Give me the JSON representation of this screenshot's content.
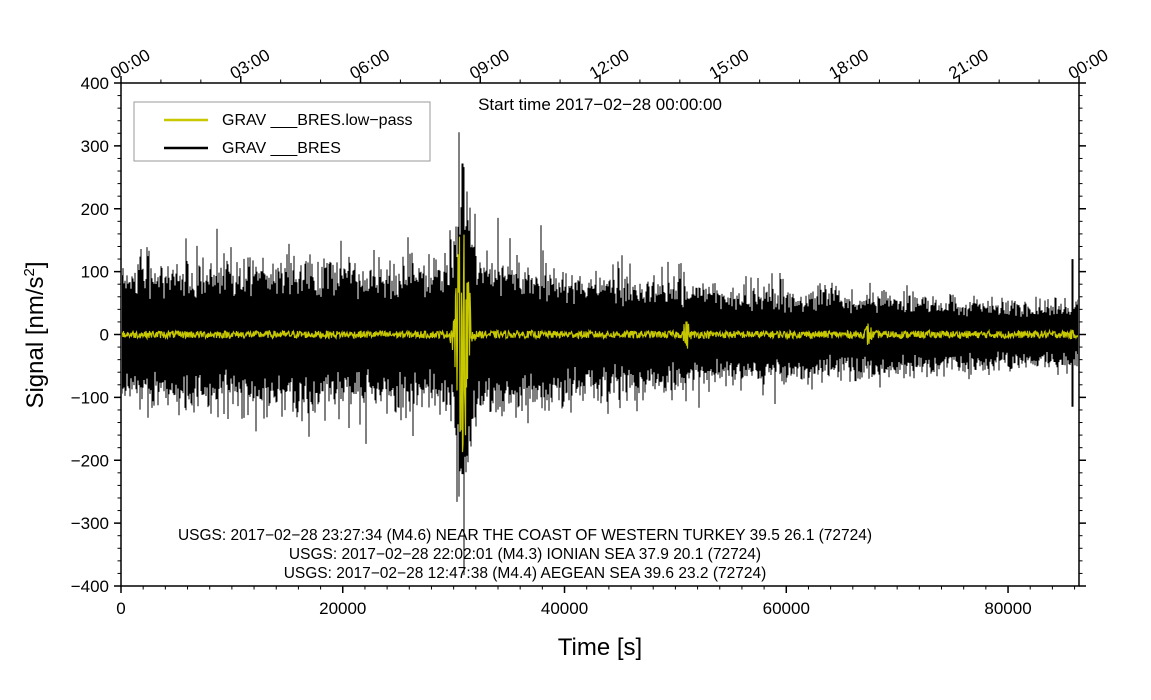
{
  "chart_data": {
    "type": "line",
    "title": "Start time 2017−02−28 00:00:00",
    "xlabel": "Time [s]",
    "ylabel_main": "Signal [nm/s",
    "ylabel_sup": "2",
    "ylabel_close": "]",
    "xlim": [
      0,
      86400
    ],
    "ylim": [
      -400,
      400
    ],
    "x_ticks": [
      0,
      20000,
      40000,
      60000,
      80000
    ],
    "x_tick_labels": [
      "0",
      "20000",
      "40000",
      "60000",
      "80000"
    ],
    "y_ticks": [
      -400,
      -300,
      -200,
      -100,
      0,
      100,
      200,
      300,
      400
    ],
    "y_tick_labels": [
      "−400",
      "−300",
      "−200",
      "−100",
      "0",
      "100",
      "200",
      "300",
      "400"
    ],
    "top_ticks_hours": [
      0,
      3,
      6,
      9,
      12,
      15,
      18,
      21,
      24
    ],
    "top_tick_labels": [
      "00:00",
      "03:00",
      "06:00",
      "09:00",
      "12:00",
      "15:00",
      "18:00",
      "21:00",
      "00:00"
    ],
    "legend_position": "top-left",
    "series": [
      {
        "name": "GRAV ___BRES.low−pass",
        "color": "#c8c800",
        "baseline_amplitude": 6,
        "bursts": [
          {
            "t": 30800,
            "amplitude": 190,
            "peak_min": -175
          },
          {
            "t": 51000,
            "amplitude": 25
          },
          {
            "t": 67400,
            "amplitude": 20
          },
          {
            "t": 85700,
            "amplitude": 8
          }
        ]
      },
      {
        "name": "GRAV ___BRES",
        "color": "#000000",
        "envelope_t": [
          0,
          5000,
          10000,
          15000,
          20000,
          25000,
          30000,
          30800,
          32000,
          40000,
          50000,
          55000,
          60000,
          70000,
          80000,
          86400
        ],
        "envelope_amp": [
          90,
          100,
          100,
          100,
          100,
          95,
          100,
          270,
          110,
          85,
          75,
          65,
          60,
          55,
          45,
          45
        ],
        "spikes": [
          {
            "t": 30800,
            "max": 272,
            "min": -222
          },
          {
            "t": 85800,
            "max": 120,
            "min": -115
          }
        ]
      }
    ],
    "annotations": [
      "USGS: 2017−02−28 23:27:34 (M4.6) NEAR THE COAST OF WESTERN TURKEY 39.5 26.1 (72724)",
      "USGS: 2017−02−28 22:02:01 (M4.3) IONIAN SEA 37.9 20.1 (72724)",
      "USGS: 2017−02−28 12:47:38 (M4.4) AEGEAN SEA 39.6 23.2 (72724)"
    ]
  }
}
